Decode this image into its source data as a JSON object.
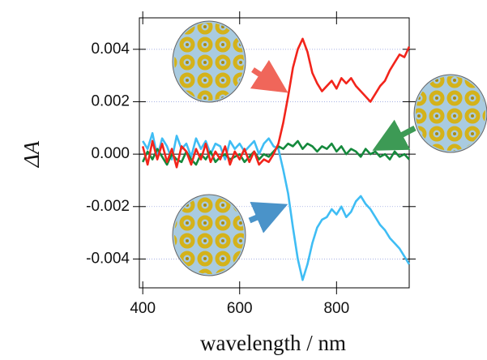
{
  "chart_data": {
    "type": "line",
    "x_label": "wavelength / nm",
    "y_label": "ΔA",
    "x": [
      400,
      410,
      420,
      430,
      440,
      450,
      460,
      470,
      480,
      490,
      500,
      510,
      520,
      530,
      540,
      550,
      560,
      570,
      580,
      590,
      600,
      610,
      620,
      630,
      640,
      650,
      660,
      670,
      680,
      690,
      700,
      710,
      720,
      730,
      740,
      750,
      760,
      770,
      780,
      790,
      800,
      810,
      820,
      830,
      840,
      850,
      860,
      870,
      880,
      890,
      900,
      910,
      920,
      930,
      940,
      950
    ],
    "series": [
      {
        "color": "#3fbdf4",
        "values": [
          0.0005,
          0.0002,
          0.0008,
          -0.0001,
          0.0006,
          0.0003,
          -0.0002,
          0.0007,
          0.0002,
          0.0004,
          -0.0001,
          0.0006,
          0.0002,
          0.0005,
          0.0,
          0.0004,
          0.0003,
          -0.0002,
          0.0005,
          0.0002,
          0.0004,
          0.0001,
          0.0003,
          0.0005,
          0.0,
          0.0004,
          0.0006,
          0.0003,
          0.0002,
          -0.0006,
          -0.0015,
          -0.0028,
          -0.004,
          -0.0048,
          -0.0042,
          -0.0034,
          -0.0028,
          -0.0025,
          -0.0024,
          -0.0021,
          -0.0023,
          -0.002,
          -0.0024,
          -0.0022,
          -0.0018,
          -0.0016,
          -0.0019,
          -0.0021,
          -0.0024,
          -0.0027,
          -0.0029,
          -0.0032,
          -0.0034,
          -0.0036,
          -0.0039,
          -0.0042
        ]
      },
      {
        "color": "#14893c",
        "values": [
          -0.0003,
          0.0001,
          -0.0002,
          0.0002,
          -0.0001,
          -0.0004,
          0.0,
          -0.0002,
          -0.0003,
          0.0001,
          -0.0002,
          -0.0004,
          0.0,
          -0.0002,
          0.0001,
          -0.0003,
          -0.0001,
          0.0,
          -0.0002,
          -0.0001,
          0.0,
          -0.0003,
          -0.0001,
          0.0001,
          -0.0002,
          0.0,
          -0.0001,
          0.0001,
          0.0003,
          0.0002,
          0.0004,
          0.0003,
          0.0005,
          0.0002,
          0.0004,
          0.0003,
          0.0001,
          0.0003,
          0.0002,
          0.0004,
          0.0001,
          0.0003,
          0.0,
          0.0002,
          0.0001,
          -0.0001,
          0.0002,
          0.0,
          0.0001,
          -0.0001,
          0.0,
          -0.0002,
          0.0001,
          -0.0001,
          0.0,
          -0.0002
        ]
      },
      {
        "color": "#f2241b",
        "values": [
          0.0003,
          -0.0004,
          0.0005,
          -0.0002,
          0.0004,
          -0.0003,
          0.0002,
          -0.0005,
          0.0003,
          0.0001,
          -0.0004,
          0.0002,
          -0.0002,
          0.0004,
          -0.0003,
          0.0001,
          -0.0002,
          0.0003,
          -0.0004,
          0.0001,
          -0.0002,
          0.0002,
          -0.0003,
          0.0001,
          -0.0004,
          -0.0002,
          -0.0003,
          0.0,
          0.0004,
          0.0012,
          0.0022,
          0.0033,
          0.004,
          0.0044,
          0.0039,
          0.0031,
          0.0027,
          0.0024,
          0.0026,
          0.0028,
          0.0025,
          0.0029,
          0.0027,
          0.0029,
          0.0026,
          0.0024,
          0.0022,
          0.002,
          0.0023,
          0.0026,
          0.0028,
          0.0032,
          0.0035,
          0.0038,
          0.0037,
          0.0041
        ]
      }
    ],
    "xlim": [
      393,
      950
    ],
    "xticks": [
      400,
      600,
      800
    ],
    "ylim": [
      -0.0051,
      0.0052
    ],
    "yticks": [
      -0.004,
      -0.002,
      {
        "value": 0,
        "label": "0.000"
      },
      0.002,
      0.004
    ],
    "grid": true
  }
}
